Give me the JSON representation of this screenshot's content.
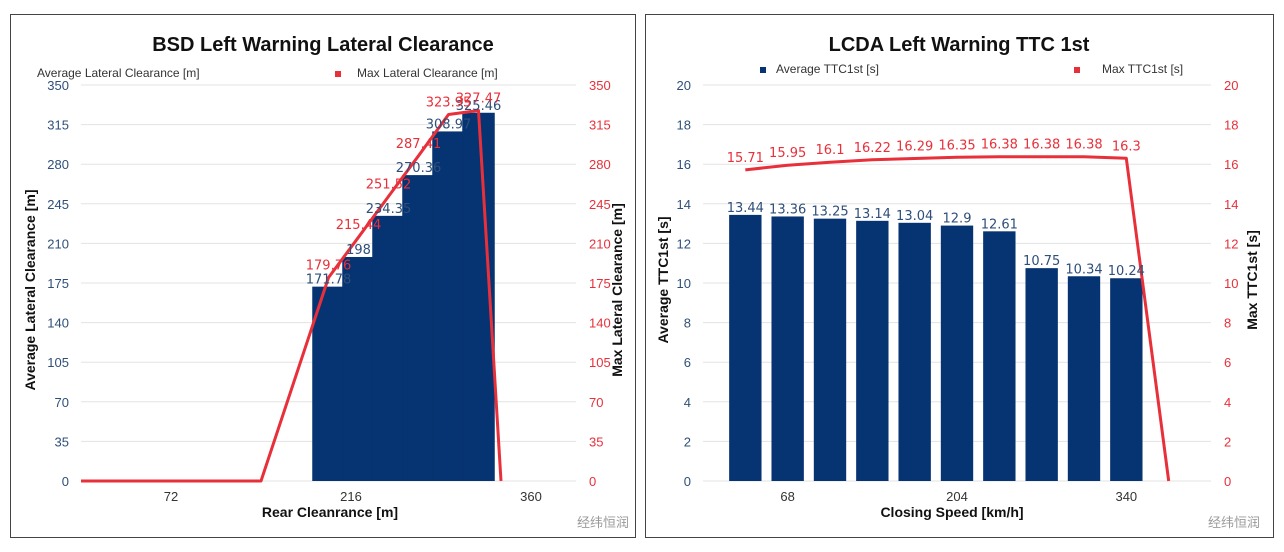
{
  "watermark": "经纬恒润",
  "chart_data": [
    {
      "type": "bar",
      "title": "BSD Left Warning Lateral Clearance",
      "xlabel": "Rear Cleanrance [m]",
      "ylabel": "Average Lateral Clearance [m]",
      "y2label": "Max Lateral Clearance [m]",
      "legend": [
        "Average Lateral Clearance [m]",
        "Max Lateral Clearance [m]"
      ],
      "legend_position": "top",
      "ylim": [
        0,
        350
      ],
      "yticks": [
        0,
        35,
        70,
        105,
        140,
        175,
        210,
        245,
        280,
        315,
        350
      ],
      "xlim": [
        0,
        396
      ],
      "xticks": [
        72,
        216,
        360
      ],
      "bar_width": 26,
      "series": [
        {
          "name": "Average Lateral Clearance [m]",
          "type": "bar",
          "axis": "left",
          "color": "#063371",
          "x": [
            198,
            222,
            246,
            270,
            294,
            318
          ],
          "values": [
            171.78,
            198,
            234.35,
            270.36,
            308.97,
            325.46
          ],
          "labels": [
            "171.78",
            "198",
            "234.35",
            "270.36",
            "308.97",
            "325.46"
          ]
        },
        {
          "name": "Max Lateral Clearance [m]",
          "type": "line",
          "axis": "right",
          "color": "#e8303a",
          "x": [
            0,
            144,
            198,
            222,
            246,
            270,
            294,
            318,
            336
          ],
          "values": [
            0,
            0,
            179.76,
            215.44,
            251.52,
            287.41,
            323.95,
            327.47,
            0
          ],
          "labels": [
            "",
            "",
            "179.76",
            "215.44",
            "251.52",
            "287.41",
            "323.95",
            "327.47",
            ""
          ]
        }
      ]
    },
    {
      "type": "bar",
      "title": "LCDA Left Warning TTC 1st",
      "xlabel": "Closing Speed [km/h]",
      "ylabel": "Average TTC1st [s]",
      "y2label": "Max TTC1st [s]",
      "legend": [
        "Average TTC1st [s]",
        "Max TTC1st [s]"
      ],
      "legend_position": "top",
      "ylim": [
        0,
        20
      ],
      "yticks": [
        0,
        2,
        4,
        6,
        8,
        10,
        12,
        14,
        16,
        18,
        20
      ],
      "xlim": [
        0,
        408
      ],
      "xticks": [
        68,
        204,
        340
      ],
      "bar_width": 26,
      "series": [
        {
          "name": "Average TTC1st [s]",
          "type": "bar",
          "axis": "left",
          "color": "#063371",
          "x": [
            34,
            68,
            102,
            136,
            170,
            204,
            238,
            272,
            306,
            340
          ],
          "values": [
            13.44,
            13.36,
            13.25,
            13.14,
            13.04,
            12.9,
            12.61,
            10.75,
            10.34,
            10.24
          ],
          "labels": [
            "13.44",
            "13.36",
            "13.25",
            "13.14",
            "13.04",
            "12.9",
            "12.61",
            "10.75",
            "10.34",
            "10.24"
          ]
        },
        {
          "name": "Max TTC1st [s]",
          "type": "line",
          "axis": "right",
          "color": "#e8303a",
          "x": [
            34,
            68,
            102,
            136,
            170,
            204,
            238,
            272,
            306,
            340,
            374
          ],
          "values": [
            15.71,
            15.95,
            16.1,
            16.22,
            16.29,
            16.35,
            16.38,
            16.38,
            16.38,
            16.3,
            0
          ],
          "labels": [
            "15.71",
            "15.95",
            "16.1",
            "16.22",
            "16.29",
            "16.35",
            "16.38",
            "16.38",
            "16.38",
            "16.3",
            ""
          ]
        }
      ]
    }
  ]
}
